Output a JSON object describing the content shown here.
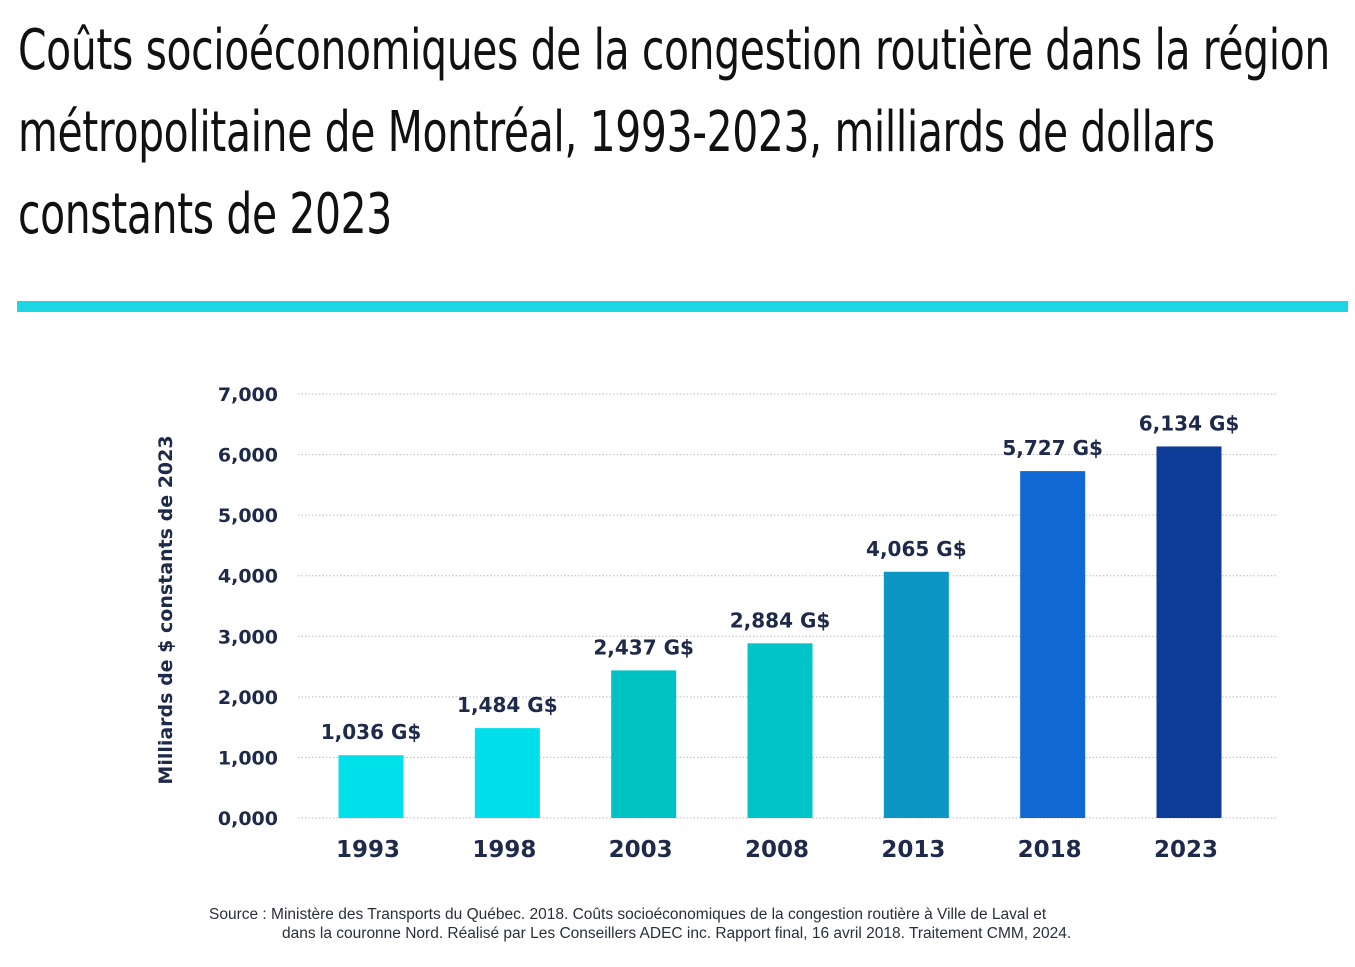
{
  "title": "Coûts socioéconomiques de la congestion routière dans la région métropolitaine de Montréal, 1993-2023, milliards de dollars constants de 2023",
  "source": {
    "line1": "Source : Ministère des Transports du Québec. 2018. Coûts socioéconomiques de la congestion routière à Ville de Laval et",
    "line2": "dans la couronne Nord. Réalisé par Les Conseillers ADEC inc. Rapport final, 16 avril 2018. Traitement CMM, 2024."
  },
  "colors": {
    "accent_rule": "#1ed6e3",
    "bars": [
      "#00e0ea",
      "#00dfea",
      "#00c1c3",
      "#00c4c8",
      "#0b96c4",
      "#1167d3",
      "#0c3c98"
    ],
    "text": "#1e2a4a"
  },
  "chart_data": {
    "type": "bar",
    "ylabel": "Milliards de $ constants de 2023",
    "xlabel": "",
    "ylim": [
      0,
      7000
    ],
    "grid": true,
    "y_ticks": [
      "7,000",
      "6,000",
      "5,000",
      "4,000",
      "3,000",
      "2,000",
      "1,000",
      "0,000"
    ],
    "y_tick_values": [
      7000,
      6000,
      5000,
      4000,
      3000,
      2000,
      1000,
      0
    ],
    "categories": [
      "1993",
      "1998",
      "2003",
      "2008",
      "2013",
      "2018",
      "2023"
    ],
    "values": [
      1036,
      1484,
      2437,
      2884,
      4065,
      5727,
      6134
    ],
    "data_labels": [
      "1,036 G$",
      "1,484 G$",
      "2,437 G$",
      "2,884 G$",
      "4,065 G$",
      "5,727 G$",
      "6,134 G$"
    ]
  }
}
